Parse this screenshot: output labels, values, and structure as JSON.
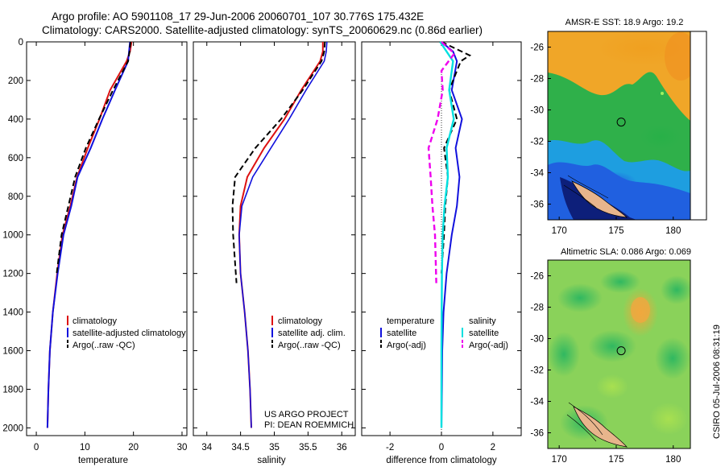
{
  "header": {
    "line1": "Argo profile: AO 5901108_17 29-Jun-2006 20060701_107 30.776S 175.432E",
    "line2": "Climatology: CARS2000. Satellite-adjusted climatology: synTS_20060629.nc (0.86d earlier)"
  },
  "colors": {
    "climatology": "#dd1111",
    "satellite": "#1111dd",
    "argo": "#000000",
    "sal_satellite": "#00e0e0",
    "sal_argo": "#ee00ee"
  },
  "chart_data": [
    {
      "type": "line",
      "xlabel": "temperature",
      "xlim": [
        -2,
        31
      ],
      "ylim": [
        2040,
        0
      ],
      "xticks": [
        "0",
        "10",
        "20",
        "30"
      ],
      "yticks": [
        "0",
        "200",
        "400",
        "600",
        "800",
        "1000",
        "1200",
        "1400",
        "1600",
        "1800",
        "2000"
      ],
      "legend": [
        "climatology",
        "satellite-adjusted climatology",
        "Argo(..raw -QC)"
      ],
      "series": [
        {
          "name": "climatology",
          "x": [
            19.6,
            19.3,
            18.6,
            15.2,
            13.0,
            10.6,
            8.4,
            7.0,
            5.4,
            4.3,
            3.4,
            2.8,
            2.5,
            2.3
          ],
          "y": [
            0,
            50,
            100,
            250,
            400,
            550,
            700,
            850,
            1000,
            1200,
            1400,
            1600,
            1800,
            2000
          ]
        },
        {
          "name": "satellite-adjusted climatology",
          "x": [
            19.3,
            19.1,
            18.9,
            16.2,
            13.6,
            11.2,
            8.5,
            7.2,
            5.6,
            4.4,
            3.4,
            2.8,
            2.5,
            2.3
          ],
          "y": [
            0,
            50,
            100,
            250,
            400,
            550,
            700,
            850,
            1000,
            1200,
            1400,
            1600,
            1800,
            2000
          ]
        },
        {
          "name": "Argo(..raw -QC)",
          "x": [
            19.4,
            19.2,
            18.9,
            15.8,
            12.9,
            10.2,
            8.0,
            6.6,
            5.2,
            4.2
          ],
          "y": [
            0,
            50,
            100,
            250,
            400,
            550,
            700,
            850,
            1000,
            1200
          ]
        }
      ]
    },
    {
      "type": "line",
      "xlabel": "salinity",
      "xlim": [
        33.8,
        36.2
      ],
      "ylim": [
        2040,
        0
      ],
      "xticks": [
        "34",
        "34.5",
        "35",
        "35.5",
        "36"
      ],
      "legend": [
        "climatology",
        "satellite adj. clim.",
        "Argo(..raw -QC)"
      ],
      "annotation": [
        "US ARGO PROJECT",
        "PI: DEAN ROEMMICH"
      ],
      "series": [
        {
          "name": "climatology",
          "x": [
            35.72,
            35.72,
            35.68,
            35.4,
            35.15,
            34.85,
            34.6,
            34.5,
            34.48,
            34.5,
            34.56,
            34.61,
            34.64,
            34.66
          ],
          "y": [
            0,
            50,
            100,
            250,
            400,
            550,
            700,
            850,
            1000,
            1200,
            1400,
            1600,
            1800,
            2000
          ]
        },
        {
          "name": "satellite adj. clim.",
          "x": [
            35.78,
            35.77,
            35.74,
            35.47,
            35.22,
            34.95,
            34.68,
            34.52,
            34.48,
            34.5,
            34.56,
            34.61,
            34.64,
            34.66
          ],
          "y": [
            0,
            50,
            100,
            250,
            400,
            550,
            700,
            850,
            1000,
            1200,
            1400,
            1600,
            1800,
            2000
          ]
        },
        {
          "name": "Argo(..raw -QC)",
          "x": [
            35.75,
            35.74,
            35.7,
            35.42,
            35.1,
            34.72,
            34.42,
            34.38,
            34.39,
            34.42,
            34.44
          ],
          "y": [
            0,
            50,
            100,
            250,
            400,
            550,
            700,
            850,
            1000,
            1150,
            1250
          ]
        }
      ]
    },
    {
      "type": "line",
      "xlabel": "difference from climatology",
      "xlim": [
        -3.1,
        3.1
      ],
      "ylim": [
        2040,
        0
      ],
      "xticks": [
        "-2",
        "0",
        "2"
      ],
      "legend": [
        "temperature",
        "satellite",
        "Argo(-adj)",
        "salinity",
        "satellite",
        "Argo(-adj)"
      ],
      "series": [
        {
          "name": "satellite",
          "x": [
            0.0,
            0.45,
            0.6,
            0.4,
            0.8,
            0.55,
            0.7,
            0.6,
            0.4,
            0.2,
            0.08,
            0.03,
            0.02,
            0.0
          ],
          "y": [
            0,
            50,
            100,
            250,
            400,
            550,
            700,
            850,
            1000,
            1200,
            1400,
            1600,
            1800,
            2000
          ]
        },
        {
          "name": "Argo(-adj)",
          "x": [
            0.0,
            1.1,
            0.75,
            0.3,
            0.6,
            0.1,
            0.25,
            0.15,
            0.1,
            0.0
          ],
          "y": [
            0,
            70,
            100,
            250,
            400,
            550,
            700,
            850,
            1000,
            1200
          ]
        },
        {
          "name": "satellite",
          "x": [
            -0.05,
            0.2,
            0.45,
            0.3,
            0.48,
            0.2,
            0.25,
            0.12,
            0.05,
            0.02,
            0.0,
            0.0
          ],
          "y": [
            0,
            50,
            100,
            250,
            400,
            550,
            700,
            850,
            1000,
            1200,
            1600,
            2000
          ]
        },
        {
          "name": "Argo(-adj)",
          "x": [
            0.0,
            0.5,
            0.0,
            0.05,
            -0.15,
            -0.5,
            -0.42,
            -0.35,
            -0.25,
            -0.22,
            -0.2
          ],
          "y": [
            0,
            60,
            150,
            250,
            400,
            550,
            700,
            850,
            1000,
            1150,
            1250
          ]
        }
      ]
    }
  ],
  "map_sst": {
    "title": "AMSR-E SST: 18.9 Argo: 19.2",
    "xticks": [
      "170",
      "175",
      "180"
    ],
    "yticks": [
      "-26",
      "-28",
      "-30",
      "-32",
      "-34",
      "-36"
    ],
    "xlim": [
      169,
      181.5
    ],
    "ylim": [
      -37,
      -25
    ],
    "float": [
      175.432,
      -30.776
    ]
  },
  "map_sla": {
    "title": "Altimetric SLA: 0.086 Argo: 0.069",
    "xticks": [
      "170",
      "175",
      "180"
    ],
    "yticks": [
      "-26",
      "-28",
      "-30",
      "-32",
      "-34",
      "-36"
    ],
    "xlim": [
      169,
      181.5
    ],
    "ylim": [
      -37,
      -25
    ],
    "float": [
      175.432,
      -30.776
    ]
  },
  "credit": "CSIRO 05-Jul-2006 08:31:19"
}
